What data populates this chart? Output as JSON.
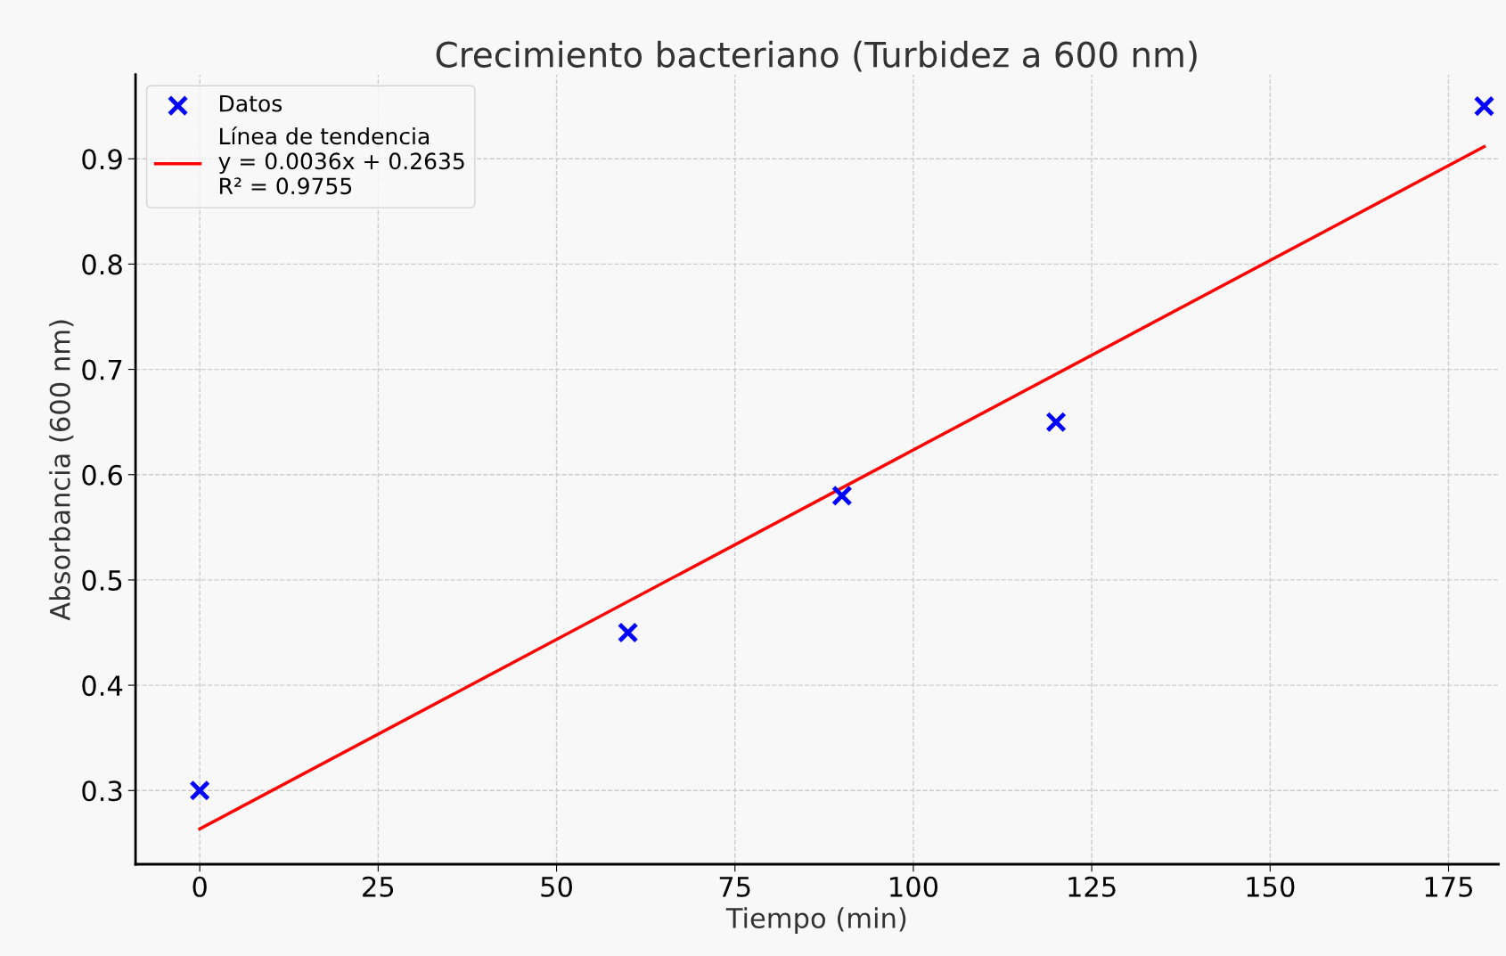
{
  "chart_data": {
    "type": "scatter",
    "title": "Crecimiento bacteriano (Turbidez a 600 nm)",
    "xlabel": "Tiempo (min)",
    "ylabel": "Absorbancia (600 nm)",
    "series": [
      {
        "name": "Datos",
        "color": "#0000ff",
        "marker": "cross",
        "x": [
          0,
          60,
          90,
          120,
          180
        ],
        "values": [
          0.3,
          0.45,
          0.58,
          0.65,
          0.95
        ]
      },
      {
        "name": "Línea de tendencia\ny = 0.0036x + 0.2635\nR² = 0.9755",
        "type": "line",
        "color": "#ff0000",
        "line_style": "solid",
        "x": [
          0,
          180
        ],
        "values": [
          0.2635,
          0.9115
        ]
      }
    ],
    "xlim": [
      -9,
      182
    ],
    "xticks": [
      0,
      25,
      50,
      75,
      100,
      125,
      150,
      175
    ],
    "ylim": [
      0.23,
      0.98
    ],
    "yticks": [
      0.3,
      0.4,
      0.5,
      0.6,
      0.7,
      0.8,
      0.9
    ],
    "grid": true,
    "legend": "top left"
  }
}
